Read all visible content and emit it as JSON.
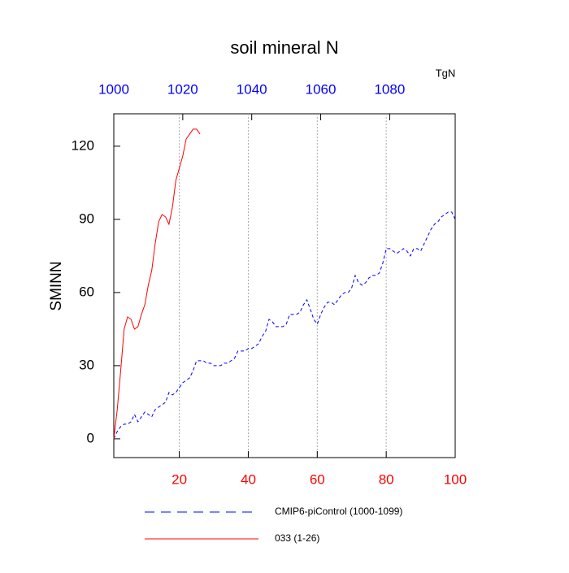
{
  "chart_data": {
    "type": "line",
    "title": "soil mineral N",
    "units_label": "TgN",
    "y_label": "SMINN",
    "xlim": [
      1,
      100
    ],
    "xticks": [
      20,
      40,
      60,
      80,
      100
    ],
    "x_tick_color": "#ff0000",
    "x2lim": [
      1000,
      1099
    ],
    "x2ticks": [
      1000,
      1020,
      1040,
      1060,
      1080
    ],
    "x2_tick_color": "#0000ff",
    "ylim": [
      -7.7,
      133.3
    ],
    "yticks": [
      0,
      30,
      60,
      90,
      120
    ],
    "grid": true,
    "series": [
      {
        "name": "CMIP6-piControl (1000-1099)",
        "color": "#0000ff",
        "dash": true,
        "x": [
          1,
          2,
          3,
          4,
          5,
          6,
          7,
          8,
          9,
          10,
          11,
          12,
          13,
          14,
          15,
          16,
          17,
          18,
          19,
          20,
          21,
          22,
          23,
          24,
          25,
          26,
          27,
          28,
          29,
          30,
          31,
          32,
          33,
          34,
          35,
          36,
          37,
          38,
          39,
          40,
          41,
          42,
          43,
          44,
          45,
          46,
          47,
          48,
          49,
          50,
          51,
          52,
          53,
          54,
          55,
          56,
          57,
          58,
          59,
          60,
          61,
          62,
          63,
          64,
          65,
          66,
          67,
          68,
          69,
          70,
          71,
          72,
          73,
          74,
          75,
          76,
          77,
          78,
          79,
          80,
          81,
          82,
          83,
          84,
          85,
          86,
          87,
          88,
          89,
          90,
          91,
          92,
          93,
          94,
          95,
          96,
          97,
          98,
          99,
          100
        ],
        "values": [
          0,
          3,
          5,
          6,
          6,
          7,
          10,
          7,
          9,
          11,
          10,
          9,
          12,
          13,
          14,
          15,
          19,
          18,
          19,
          21,
          23,
          24,
          25,
          28,
          32,
          32,
          32,
          31,
          31,
          30,
          30,
          30,
          31,
          31,
          32,
          33,
          36,
          36,
          36,
          37,
          37,
          38,
          39,
          42,
          44,
          49,
          48,
          46,
          46,
          46,
          47,
          51,
          51,
          51,
          52,
          55,
          57,
          53,
          49,
          47,
          51,
          54,
          56,
          56,
          55,
          57,
          59,
          60,
          60,
          62,
          67,
          64,
          63,
          64,
          66,
          67,
          67,
          68,
          72,
          78,
          78,
          77,
          76,
          77,
          78,
          77,
          75,
          78,
          78,
          77,
          80,
          83,
          86,
          88,
          89,
          91,
          92,
          93,
          93,
          90
        ]
      },
      {
        "name": "033 (1-26)",
        "color": "#ff0000",
        "dash": false,
        "x": [
          1,
          2,
          3,
          4,
          5,
          6,
          7,
          8,
          9,
          10,
          11,
          12,
          13,
          14,
          15,
          16,
          17,
          18,
          19,
          20,
          21,
          22,
          23,
          24,
          25,
          26
        ],
        "values": [
          0,
          12,
          28,
          45,
          50,
          49,
          45,
          46,
          51,
          55,
          63,
          69,
          80,
          89,
          92,
          91,
          88,
          95,
          106,
          111,
          116,
          123,
          125,
          127,
          127,
          125
        ]
      }
    ]
  }
}
